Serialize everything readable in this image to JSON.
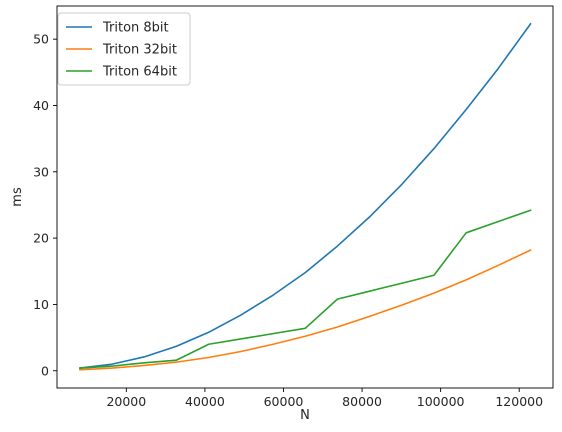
{
  "chart_data": {
    "type": "line",
    "title": "",
    "xlabel": "N",
    "ylabel": "ms",
    "xlim": [
      2350,
      128600
    ],
    "ylim": [
      -2.6,
      55
    ],
    "xticks": [
      20000,
      40000,
      60000,
      80000,
      100000,
      120000
    ],
    "xtick_labels": [
      "20000",
      "40000",
      "60000",
      "80000",
      "100000",
      "120000"
    ],
    "yticks": [
      0,
      10,
      20,
      30,
      40,
      50
    ],
    "ytick_labels": [
      "0",
      "10",
      "20",
      "30",
      "40",
      "50"
    ],
    "grid": false,
    "legend_position": "top-left",
    "x": [
      8192,
      16384,
      24576,
      32768,
      40960,
      49152,
      57344,
      65536,
      73728,
      81920,
      90112,
      98304,
      106496,
      114688,
      122880
    ],
    "series": [
      {
        "name": "Triton 8bit",
        "color": "#1f77b4",
        "values": [
          0.4,
          1.0,
          2.1,
          3.7,
          5.8,
          8.4,
          11.4,
          14.8,
          18.8,
          23.2,
          28.1,
          33.5,
          39.4,
          45.6,
          52.3
        ]
      },
      {
        "name": "Triton 32bit",
        "color": "#ff7f0e",
        "values": [
          0.15,
          0.4,
          0.8,
          1.3,
          2.0,
          2.9,
          4.0,
          5.2,
          6.6,
          8.2,
          9.9,
          11.7,
          13.7,
          15.9,
          18.2
        ]
      },
      {
        "name": "Triton 64bit",
        "color": "#2ca02c",
        "values": [
          0.4,
          0.7,
          1.2,
          1.6,
          4.0,
          4.8,
          5.6,
          6.4,
          10.8,
          12.0,
          13.2,
          14.4,
          20.8,
          22.5,
          24.2
        ]
      }
    ]
  }
}
